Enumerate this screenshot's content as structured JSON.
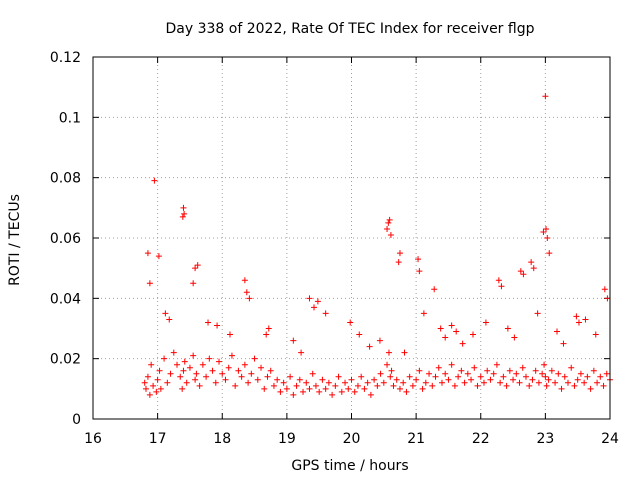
{
  "chart_data": {
    "type": "scatter",
    "title": "Day 338 of 2022, Rate Of TEC Index for receiver flgp",
    "xlabel": "GPS time / hours",
    "ylabel": "ROTI / TECUs",
    "xlim": [
      16,
      24
    ],
    "ylim": [
      0,
      0.12
    ],
    "x_ticks": [
      16,
      17,
      18,
      19,
      20,
      21,
      22,
      23,
      24
    ],
    "x_tick_labels": [
      "16",
      "17",
      "18",
      "19",
      "20",
      "21",
      "22",
      "23",
      "24"
    ],
    "y_ticks": [
      0,
      0.02,
      0.04,
      0.06,
      0.08,
      0.1,
      0.12
    ],
    "y_tick_labels": [
      "0",
      "0.02",
      "0.04",
      "0.06",
      "0.08",
      "0.1",
      "0.12"
    ],
    "grid": true,
    "marker": "+",
    "color": "#ff0000",
    "series": [
      {
        "name": "ROTI",
        "x": [
          16.8,
          16.82,
          16.85,
          16.88,
          16.9,
          16.93,
          16.98,
          17.0,
          17.03,
          17.05,
          17.1,
          17.15,
          17.2,
          17.25,
          17.3,
          17.35,
          17.38,
          17.4,
          17.42,
          17.45,
          17.5,
          17.55,
          17.58,
          17.6,
          17.65,
          17.7,
          17.75,
          17.8,
          17.85,
          17.9,
          17.95,
          18.0,
          18.05,
          18.1,
          18.15,
          18.2,
          18.25,
          18.3,
          18.35,
          18.4,
          18.45,
          18.5,
          18.55,
          18.6,
          18.65,
          18.7,
          18.75,
          18.8,
          18.85,
          18.9,
          18.95,
          19.0,
          19.05,
          19.1,
          19.15,
          19.2,
          19.25,
          19.3,
          19.35,
          19.4,
          19.45,
          19.5,
          19.55,
          19.6,
          19.65,
          19.7,
          19.75,
          19.8,
          19.85,
          19.9,
          19.95,
          20.0,
          20.05,
          20.1,
          20.15,
          20.2,
          20.25,
          20.3,
          20.35,
          20.4,
          20.45,
          20.5,
          20.55,
          20.58,
          20.6,
          20.62,
          20.65,
          20.7,
          20.75,
          20.8,
          20.85,
          20.9,
          20.95,
          21.0,
          21.05,
          21.1,
          21.15,
          21.2,
          21.25,
          21.3,
          21.35,
          21.4,
          21.45,
          21.5,
          21.55,
          21.6,
          21.65,
          21.7,
          21.75,
          21.8,
          21.85,
          21.9,
          21.95,
          22.0,
          22.05,
          22.1,
          22.15,
          22.2,
          22.25,
          22.3,
          22.35,
          22.4,
          22.45,
          22.5,
          22.55,
          22.6,
          22.65,
          22.7,
          22.75,
          22.8,
          22.85,
          22.9,
          22.95,
          22.98,
          23.0,
          23.02,
          23.05,
          23.1,
          23.15,
          23.2,
          23.25,
          23.3,
          23.35,
          23.4,
          23.45,
          23.5,
          23.55,
          23.6,
          23.65,
          23.7,
          23.75,
          23.8,
          23.85,
          23.9,
          23.95,
          24.0,
          16.95,
          17.02,
          17.4,
          17.41,
          17.39,
          17.62,
          17.92,
          18.35,
          18.38,
          18.42,
          19.35,
          19.42,
          19.48,
          20.55,
          20.57,
          20.59,
          20.61,
          20.73,
          20.75,
          21.03,
          21.05,
          21.28,
          21.55,
          21.62,
          22.28,
          22.32,
          22.62,
          22.66,
          22.78,
          22.82,
          22.97,
          23.01,
          23.03,
          23.0,
          23.06,
          23.48,
          23.52,
          23.92,
          23.96,
          16.85,
          16.88,
          17.12,
          17.18,
          17.55,
          17.58,
          17.78,
          18.12,
          18.68,
          18.72,
          19.1,
          19.22,
          19.6,
          19.98,
          20.12,
          20.28,
          20.44,
          20.82,
          21.12,
          21.38,
          21.45,
          21.72,
          21.88,
          22.08,
          22.42,
          22.52,
          22.88,
          23.18,
          23.28,
          23.62,
          23.78
        ],
        "y": [
          0.012,
          0.01,
          0.014,
          0.008,
          0.018,
          0.011,
          0.009,
          0.013,
          0.016,
          0.01,
          0.02,
          0.012,
          0.015,
          0.022,
          0.018,
          0.014,
          0.01,
          0.016,
          0.019,
          0.012,
          0.017,
          0.021,
          0.013,
          0.015,
          0.011,
          0.018,
          0.014,
          0.02,
          0.016,
          0.012,
          0.019,
          0.015,
          0.013,
          0.017,
          0.021,
          0.011,
          0.016,
          0.014,
          0.018,
          0.012,
          0.015,
          0.02,
          0.013,
          0.017,
          0.01,
          0.014,
          0.016,
          0.011,
          0.013,
          0.009,
          0.012,
          0.01,
          0.014,
          0.008,
          0.011,
          0.013,
          0.009,
          0.012,
          0.01,
          0.015,
          0.011,
          0.009,
          0.013,
          0.01,
          0.012,
          0.008,
          0.011,
          0.014,
          0.009,
          0.012,
          0.01,
          0.013,
          0.009,
          0.011,
          0.014,
          0.01,
          0.012,
          0.008,
          0.013,
          0.011,
          0.015,
          0.012,
          0.018,
          0.022,
          0.014,
          0.016,
          0.011,
          0.013,
          0.01,
          0.012,
          0.009,
          0.014,
          0.011,
          0.013,
          0.016,
          0.01,
          0.012,
          0.015,
          0.011,
          0.014,
          0.017,
          0.012,
          0.015,
          0.013,
          0.018,
          0.011,
          0.014,
          0.016,
          0.012,
          0.015,
          0.013,
          0.017,
          0.011,
          0.014,
          0.012,
          0.016,
          0.013,
          0.015,
          0.018,
          0.012,
          0.014,
          0.011,
          0.016,
          0.013,
          0.015,
          0.012,
          0.017,
          0.014,
          0.011,
          0.013,
          0.016,
          0.012,
          0.015,
          0.018,
          0.014,
          0.011,
          0.013,
          0.016,
          0.012,
          0.015,
          0.01,
          0.014,
          0.012,
          0.017,
          0.011,
          0.013,
          0.015,
          0.012,
          0.014,
          0.01,
          0.016,
          0.012,
          0.014,
          0.011,
          0.015,
          0.013,
          0.079,
          0.054,
          0.07,
          0.068,
          0.067,
          0.051,
          0.031,
          0.046,
          0.042,
          0.04,
          0.04,
          0.037,
          0.039,
          0.063,
          0.065,
          0.066,
          0.061,
          0.052,
          0.055,
          0.053,
          0.049,
          0.043,
          0.031,
          0.029,
          0.046,
          0.044,
          0.049,
          0.048,
          0.052,
          0.05,
          0.062,
          0.063,
          0.06,
          0.107,
          0.055,
          0.034,
          0.032,
          0.043,
          0.04,
          0.055,
          0.045,
          0.035,
          0.033,
          0.045,
          0.05,
          0.032,
          0.028,
          0.028,
          0.03,
          0.026,
          0.022,
          0.035,
          0.032,
          0.028,
          0.024,
          0.026,
          0.022,
          0.035,
          0.03,
          0.027,
          0.025,
          0.028,
          0.032,
          0.03,
          0.027,
          0.035,
          0.029,
          0.025,
          0.033,
          0.028
        ]
      }
    ]
  }
}
